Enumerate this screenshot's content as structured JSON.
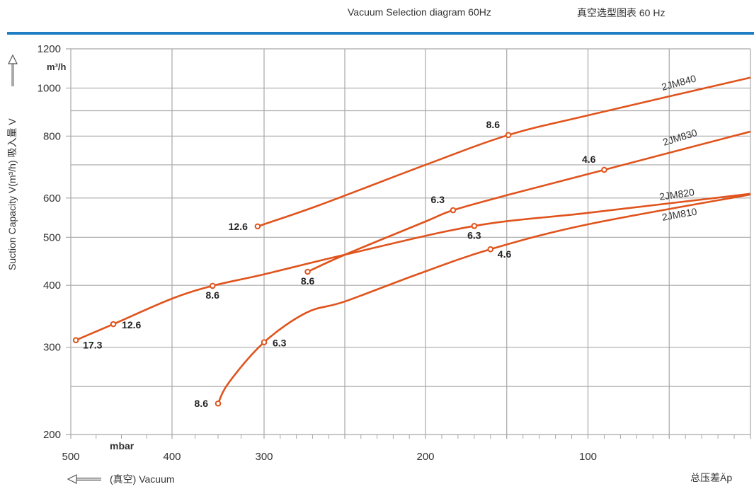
{
  "header": {
    "title_en": "Vacuum Selection diagram 60Hz",
    "title_cn": "真空选型图表 60 Hz",
    "accent_color": "#1e7dc3"
  },
  "chart_data": {
    "type": "line",
    "title": "Vacuum Selection diagram 60Hz",
    "xlabel": "(真空) Vacuum",
    "xlabel_right": "总压差Äp",
    "x_unit": "mbar",
    "ylabel": "Suction Capacity  V(m³/h)  吸入量 V",
    "y_unit": "m³/h",
    "y_scale": "log",
    "xlim": [
      500,
      0
    ],
    "ylim": [
      200,
      1200
    ],
    "x_ticks": [
      500,
      400,
      300,
      200,
      100
    ],
    "x_tick_labels": [
      "500",
      "400",
      "300",
      "200",
      "100"
    ],
    "x_grid": [
      500,
      400,
      300,
      250,
      200,
      150,
      100,
      50,
      0
    ],
    "y_ticks": [
      1200,
      1000,
      800,
      600,
      500,
      400,
      300,
      200
    ],
    "y_tick_labels": [
      "1200",
      "1000",
      "800",
      "600",
      "500",
      "400",
      "300",
      "200"
    ],
    "y_grid": [
      1200,
      1000,
      900,
      800,
      700,
      600,
      500,
      400,
      300,
      250,
      200
    ],
    "grid": true,
    "line_color": "#e0531c",
    "series": [
      {
        "name": "2JM840",
        "x": [
          307,
          266,
          200,
          149,
          100,
          0
        ],
        "y": [
          526,
          580,
          700,
          804,
          881,
          1050
        ],
        "points": [
          {
            "x": 307,
            "y": 526,
            "label": "12.6",
            "pos": "left"
          },
          {
            "x": 149,
            "y": 804,
            "label": "8.6",
            "pos": "above-left"
          }
        ]
      },
      {
        "name": "2JM830",
        "x": [
          273,
          250,
          200,
          183,
          149,
          90,
          0
        ],
        "y": [
          426,
          461,
          538,
          567,
          609,
          684,
          817
        ],
        "points": [
          {
            "x": 273,
            "y": 426,
            "label": "8.6",
            "pos": "below"
          },
          {
            "x": 183,
            "y": 567,
            "label": "6.3",
            "pos": "above-left"
          },
          {
            "x": 90,
            "y": 684,
            "label": "4.6",
            "pos": "above-left"
          }
        ]
      },
      {
        "name": "2JM820",
        "x": [
          495,
          458,
          400,
          356,
          300,
          250,
          170,
          100,
          0
        ],
        "y": [
          310,
          334,
          376,
          399,
          421,
          461,
          527,
          560,
          612
        ],
        "points": [
          {
            "x": 495,
            "y": 310,
            "label": "17.3",
            "pos": "below-right"
          },
          {
            "x": 458,
            "y": 334,
            "label": "12.6",
            "pos": "right"
          },
          {
            "x": 356,
            "y": 399,
            "label": "8.6",
            "pos": "below"
          },
          {
            "x": 170,
            "y": 527,
            "label": "6.3",
            "pos": "below"
          }
        ]
      },
      {
        "name": "2JM810",
        "x": [
          350,
          338,
          300,
          274,
          250,
          205,
          160,
          100,
          0
        ],
        "y": [
          231,
          255,
          307,
          352,
          371,
          421,
          473,
          531,
          610
        ],
        "points": [
          {
            "x": 350,
            "y": 231,
            "label": "8.6",
            "pos": "left"
          },
          {
            "x": 300,
            "y": 307,
            "label": "6.3",
            "pos": "right"
          },
          {
            "x": 160,
            "y": 473,
            "label": "4.6",
            "pos": "below-right"
          }
        ]
      }
    ]
  }
}
